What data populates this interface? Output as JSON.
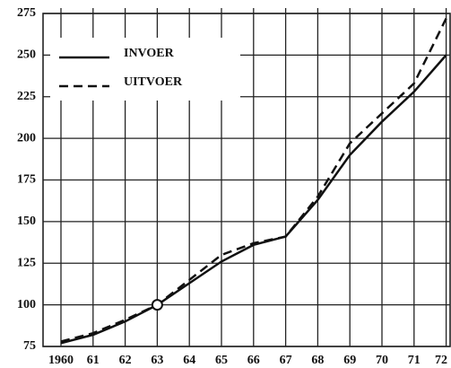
{
  "chart_data": {
    "type": "line",
    "categories": [
      "1960",
      "61",
      "62",
      "63",
      "64",
      "65",
      "66",
      "67",
      "68",
      "69",
      "70",
      "71",
      "72"
    ],
    "series": [
      {
        "name": "INVOER",
        "color": "#111111",
        "dash": false,
        "values": [
          77,
          82,
          90,
          100,
          113,
          126,
          136,
          141,
          163,
          190,
          210,
          228,
          250
        ]
      },
      {
        "name": "UITVOER",
        "color": "#111111",
        "dash": true,
        "values": [
          78,
          83,
          91,
          100,
          115,
          130,
          137,
          141,
          165,
          197,
          215,
          233,
          272
        ]
      }
    ],
    "ylim": [
      75,
      275
    ],
    "yticks": [
      75,
      100,
      125,
      150,
      175,
      200,
      225,
      250,
      275
    ],
    "grid": true,
    "legend": "upper left"
  }
}
